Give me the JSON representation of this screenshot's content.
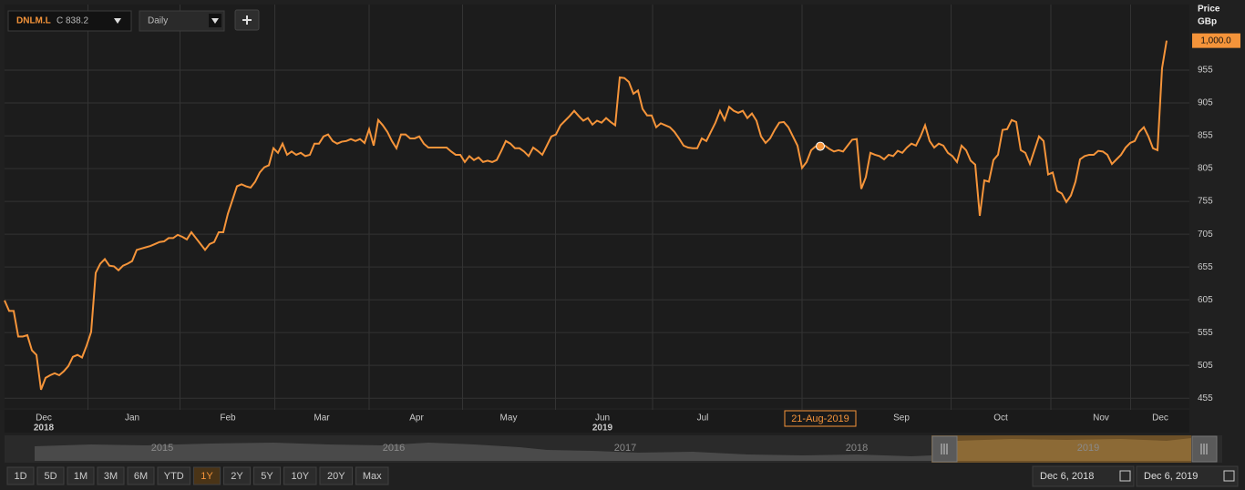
{
  "chart_data": {
    "type": "line",
    "series": [
      {
        "name": "DNLM.L",
        "color": "#f5943a",
        "values": [
          604,
          588,
          588,
          549,
          549,
          551,
          528,
          521,
          468,
          486,
          490,
          493,
          490,
          496,
          504,
          518,
          521,
          517,
          535,
          556,
          646,
          660,
          667,
          657,
          656,
          650,
          657,
          660,
          664,
          681,
          683,
          685,
          687,
          690,
          693,
          694,
          699,
          699,
          704,
          701,
          697,
          708,
          699,
          690,
          681,
          690,
          693,
          708,
          708,
          736,
          757,
          778,
          781,
          778,
          776,
          785,
          799,
          807,
          810,
          836,
          829,
          843,
          826,
          831,
          826,
          829,
          824,
          826,
          843,
          843,
          854,
          857,
          847,
          843,
          846,
          847,
          850,
          847,
          850,
          844,
          865,
          840,
          879,
          871,
          861,
          847,
          836,
          857,
          857,
          851,
          851,
          854,
          843,
          837,
          837,
          837,
          837,
          837,
          831,
          826,
          826,
          815,
          824,
          818,
          822,
          815,
          817,
          815,
          818,
          832,
          847,
          843,
          836,
          836,
          831,
          824,
          837,
          832,
          826,
          840,
          854,
          857,
          871,
          878,
          885,
          893,
          885,
          878,
          882,
          872,
          878,
          875,
          882,
          876,
          871,
          944,
          943,
          937,
          919,
          924,
          896,
          886,
          886,
          868,
          874,
          871,
          868,
          861,
          851,
          840,
          837,
          836,
          836,
          851,
          847,
          861,
          875,
          893,
          879,
          899,
          893,
          890,
          893,
          882,
          889,
          878,
          854,
          844,
          851,
          864,
          875,
          876,
          868,
          854,
          840,
          806,
          815,
          833,
          839,
          839,
          840,
          835,
          831,
          833,
          831,
          840,
          849,
          850,
          774,
          792,
          829,
          826,
          824,
          819,
          826,
          824,
          832,
          829,
          837,
          843,
          840,
          854,
          871,
          847,
          837,
          843,
          840,
          829,
          824,
          815,
          840,
          833,
          817,
          811,
          733,
          787,
          785,
          818,
          826,
          864,
          865,
          879,
          876,
          833,
          829,
          812,
          833,
          854,
          847,
          796,
          799,
          771,
          767,
          754,
          764,
          785,
          819,
          824,
          826,
          826,
          832,
          831,
          826,
          812,
          819,
          826,
          837,
          844,
          847,
          861,
          868,
          854,
          836,
          833,
          958,
          1000
        ]
      }
    ],
    "xlim": [
      0,
      260
    ],
    "xticks": [
      {
        "value": 8.6,
        "label": "Dec"
      },
      {
        "value": 28,
        "label": "Jan"
      },
      {
        "value": 49,
        "label": "Feb"
      },
      {
        "value": 69.6,
        "label": "Mar"
      },
      {
        "value": 90.4,
        "label": "Apr"
      },
      {
        "value": 110.6,
        "label": "May"
      },
      {
        "value": 131.2,
        "label": "Jun"
      },
      {
        "value": 153.2,
        "label": "Jul"
      },
      {
        "value": 196.8,
        "label": "Sep"
      },
      {
        "value": 218.6,
        "label": "Oct"
      },
      {
        "value": 240.6,
        "label": "Nov"
      },
      {
        "value": 253.6,
        "label": "Dec"
      }
    ],
    "xyears": [
      {
        "value": 8.6,
        "label": "2018"
      },
      {
        "value": 131.2,
        "label": "2019"
      }
    ],
    "ylim": [
      440,
      1055
    ],
    "yticks": [
      455,
      505,
      555,
      605,
      655,
      705,
      755,
      805,
      855,
      905,
      955
    ],
    "y_axis_label": "Price",
    "y_axis_unit": "GBp",
    "last_value_label": "1,000.0",
    "crosshair": {
      "label": "21-Aug-2019",
      "point": 179
    },
    "grid": true
  },
  "ui": {
    "ric": "DNLM.L",
    "close": "C 838.2",
    "interval": "Daily",
    "navigator_years": [
      "2015",
      "2016",
      "2017",
      "2018",
      "2019"
    ],
    "ranges": [
      "1D",
      "5D",
      "1M",
      "3M",
      "6M",
      "YTD",
      "1Y",
      "2Y",
      "5Y",
      "10Y",
      "20Y",
      "Max"
    ],
    "active_range": "1Y",
    "start_date": "Dec 6, 2018",
    "end_date": "Dec 6, 2019"
  }
}
